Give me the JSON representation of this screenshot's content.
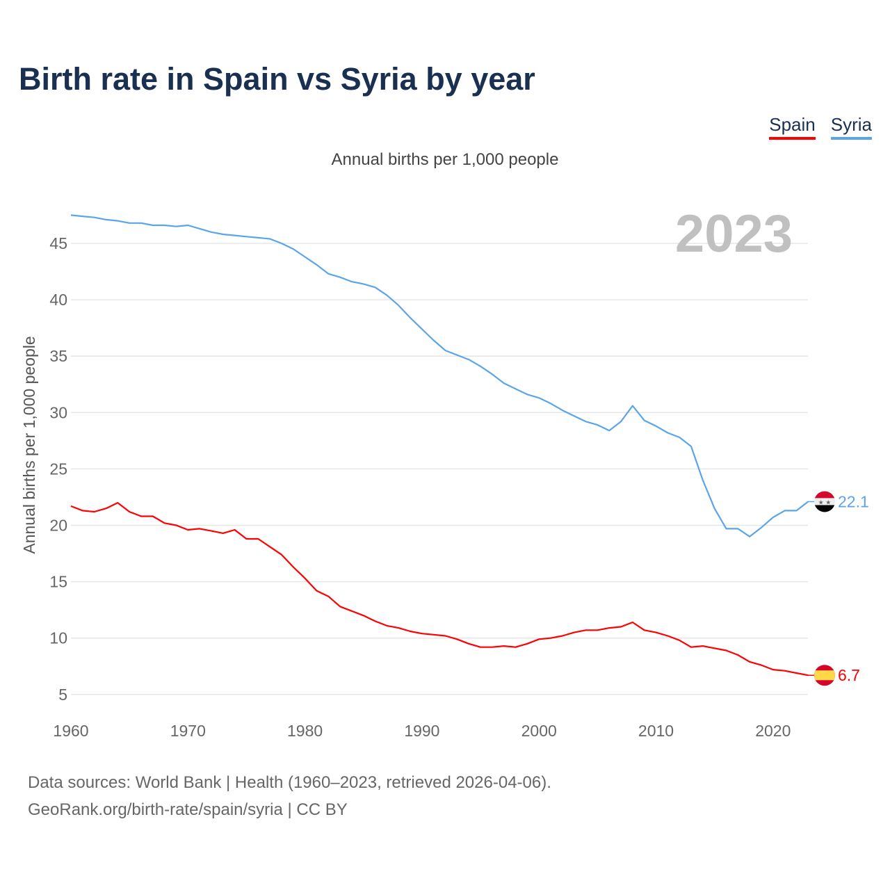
{
  "title": "Birth rate in Spain vs Syria by year",
  "subtitle": "Annual births per 1,000 people",
  "source_line1": "Data sources: World Bank | Health (1960–2023, retrieved 2026-04-06).",
  "source_line2": "GeoRank.org/birth-rate/spain/syria | CC BY",
  "chart_data": {
    "type": "line",
    "title": "Birth rate in Spain vs Syria by year",
    "subtitle": "Annual births per 1,000 people",
    "ylabel": "Annual births per 1,000 people",
    "xlabel": "",
    "year_label": "2023",
    "xlim": [
      1960,
      2023
    ],
    "ylim": [
      3,
      48
    ],
    "xticks": [
      1960,
      1970,
      1980,
      1990,
      2000,
      2010,
      2020
    ],
    "yticks": [
      5,
      10,
      15,
      20,
      25,
      30,
      35,
      40,
      45
    ],
    "grid": true,
    "legend_position": "top-right",
    "x_start": 1960,
    "series": [
      {
        "name": "Spain",
        "color": "#ff0000",
        "end_label": "6.7",
        "flag": "spain",
        "values": [
          21.7,
          21.3,
          21.2,
          21.5,
          22.0,
          21.2,
          20.8,
          20.8,
          20.2,
          20.0,
          19.6,
          19.7,
          19.5,
          19.3,
          19.6,
          18.8,
          18.8,
          18.1,
          17.4,
          16.3,
          15.3,
          14.2,
          13.7,
          12.8,
          12.4,
          12.0,
          11.5,
          11.1,
          10.9,
          10.6,
          10.4,
          10.3,
          10.2,
          9.9,
          9.5,
          9.2,
          9.2,
          9.3,
          9.2,
          9.5,
          9.9,
          10.0,
          10.2,
          10.5,
          10.7,
          10.7,
          10.9,
          11.0,
          11.4,
          10.7,
          10.5,
          10.2,
          9.8,
          9.2,
          9.3,
          9.1,
          8.9,
          8.5,
          7.9,
          7.6,
          7.2,
          7.1,
          6.9,
          6.7
        ]
      },
      {
        "name": "Syria",
        "color": "#5aa5ea",
        "end_label": "22.1",
        "flag": "syria",
        "values": [
          47.5,
          47.4,
          47.3,
          47.1,
          47.0,
          46.8,
          46.8,
          46.6,
          46.6,
          46.5,
          46.6,
          46.3,
          46.0,
          45.8,
          45.7,
          45.6,
          45.5,
          45.4,
          45.0,
          44.5,
          43.8,
          43.1,
          42.3,
          42.0,
          41.6,
          41.4,
          41.1,
          40.4,
          39.5,
          38.4,
          37.4,
          36.4,
          35.5,
          35.1,
          34.7,
          34.1,
          33.4,
          32.6,
          32.1,
          31.6,
          31.3,
          30.8,
          30.2,
          29.7,
          29.2,
          28.9,
          28.4,
          29.2,
          30.6,
          29.3,
          28.8,
          28.2,
          27.8,
          27.0,
          24.0,
          21.5,
          19.7,
          19.7,
          19.0,
          19.8,
          20.7,
          21.3,
          21.3,
          22.1
        ]
      }
    ]
  }
}
